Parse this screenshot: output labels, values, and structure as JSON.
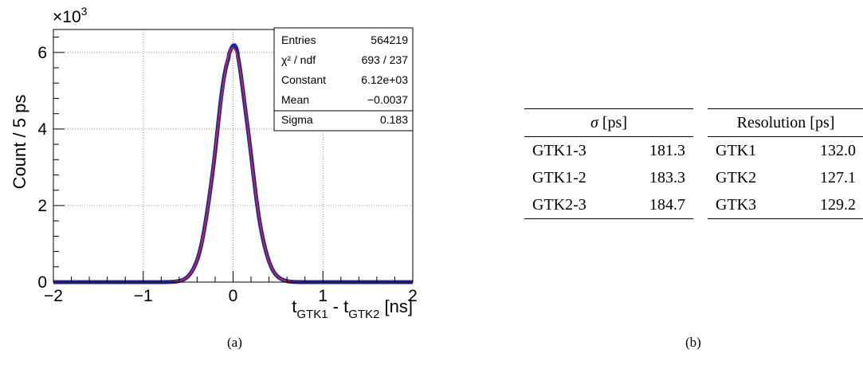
{
  "chart_data": [
    {
      "type": "histogram",
      "panel_label": "(a)",
      "xlabel_main": "t",
      "xlabel_sub1": "GTK1",
      "xlabel_mid": " - t",
      "xlabel_sub2": "GTK2",
      "xlabel_unit": " [ns]",
      "ylabel": "Count / 5 ps",
      "y_multiplier": "×10",
      "y_multiplier_exp": "3",
      "xlim": [
        -2,
        2
      ],
      "ylim": [
        0,
        6.6
      ],
      "y_scale_factor": 1000,
      "x_ticks": [
        -2,
        -1,
        0,
        1,
        2
      ],
      "y_ticks": [
        0,
        2,
        4,
        6
      ],
      "grid": true,
      "series": [
        {
          "kind": "data",
          "color": "#1a2a9c"
        },
        {
          "kind": "gaussian-fit",
          "color": "#e0203a"
        }
      ],
      "fit": {
        "constant": 6.12,
        "mean": -0.0037,
        "sigma": 0.183
      },
      "stats_box": [
        {
          "label": "Entries",
          "value": "564219"
        },
        {
          "label": "χ² / ndf",
          "value": "693 / 237"
        },
        {
          "label": "Constant",
          "value": "6.12e+03"
        },
        {
          "label": "Mean",
          "value": "−0.0037"
        },
        {
          "label": "Sigma",
          "value": "0.183"
        }
      ]
    },
    {
      "type": "table",
      "panel_label": "(b)",
      "sigma_table": {
        "header_symbol": "σ",
        "header_unit": " [ps]",
        "rows": [
          {
            "label": "GTK1-3",
            "value": "181.3"
          },
          {
            "label": "GTK1-2",
            "value": "183.3"
          },
          {
            "label": "GTK2-3",
            "value": "184.7"
          }
        ]
      },
      "resolution_table": {
        "header": "Resolution [ps]",
        "rows": [
          {
            "label": "GTK1",
            "value": "132.0"
          },
          {
            "label": "GTK2",
            "value": "127.1"
          },
          {
            "label": "GTK3",
            "value": "129.2"
          }
        ]
      }
    }
  ]
}
